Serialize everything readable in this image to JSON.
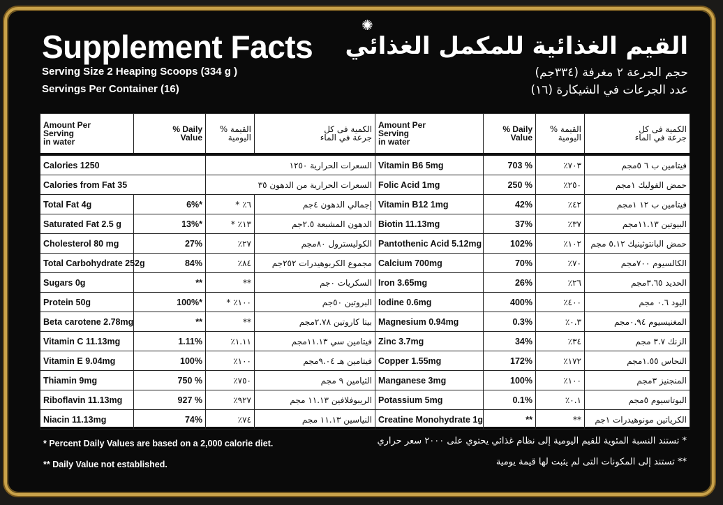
{
  "logo_glyph": "✺",
  "title_en": "Supplement Facts",
  "serving_size_en": "Serving Size 2 Heaping Scoops (334 g )",
  "servings_per_container_en": "Servings Per Container (16)",
  "title_ar": "القيم الغذائية للمكمل الغذائي",
  "serving_size_ar": "حجم الجرعة ٢ مغرفة (٣٣٤جم)",
  "servings_per_container_ar": "عدد الجرعات في الشيكارة (١٦)",
  "left_table": {
    "header": {
      "amount_en": [
        "Amount Per",
        "Serving",
        "in water"
      ],
      "daily_en": [
        "% Daily",
        "Value"
      ],
      "daily_ar": [
        "القيمة %",
        "اليومية"
      ],
      "amount_ar": [
        "الكمية فى كل",
        "جرعة في الماء"
      ]
    },
    "calories": [
      {
        "en": "Calories 1250",
        "ar": "السعرات الحرارية ١٢٥٠"
      },
      {
        "en": "Calories from Fat 35",
        "ar": "السعرات الحرارية من الدهون ٣٥"
      }
    ],
    "rows": [
      {
        "en": "Total Fat 4g",
        "pct_en": "6%*",
        "pct_ar": "٦٪ *",
        "ar": "إجمالي الدهون ٤جم"
      },
      {
        "en": "Saturated Fat 2.5 g",
        "pct_en": "13%*",
        "pct_ar": "١٣٪ *",
        "ar": "الدهون المشبعة ٢.٥جم"
      },
      {
        "en": "Cholesterol 80 mg",
        "pct_en": "27%",
        "pct_ar": "٢٧٪",
        "ar": "الكوليسترول ٨٠مجم"
      },
      {
        "en": "Total Carbohydrate 252g",
        "pct_en": "84%",
        "pct_ar": "٨٤٪",
        "ar": "مجموع الكربوهيدرات ٢٥٢جم"
      },
      {
        "en": "Sugars 0g",
        "pct_en": "**",
        "pct_ar": "**",
        "ar": "السكريات ٠جم"
      },
      {
        "en": "Protein 50g",
        "pct_en": "100%*",
        "pct_ar": "١٠٠٪ *",
        "ar": "البروتين ٥٠جم"
      },
      {
        "en": "Beta carotene 2.78mg",
        "pct_en": "**",
        "pct_ar": "**",
        "ar": "بيتا كاروتين ٢.٧٨مجم"
      },
      {
        "en": "Vitamin C 11.13mg",
        "pct_en": "1.11%",
        "pct_ar": "١.١١٪",
        "ar": "فيتامين سي ١١.١٣مجم"
      },
      {
        "en": "Vitamin E 9.04mg",
        "pct_en": "100%",
        "pct_ar": "١٠٠٪",
        "ar": "فيتامين هـ ٩.٠٤مجم"
      },
      {
        "en": "Thiamin 9mg",
        "pct_en": "750 %",
        "pct_ar": "٧٥٠٪",
        "ar": "الثيامين ٩ مجم"
      },
      {
        "en": "Riboflavin 11.13mg",
        "pct_en": "927 %",
        "pct_ar": "٩٢٧٪",
        "ar": "الريبوفلافين ١١.١٣ مجم"
      },
      {
        "en": "Niacin 11.13mg",
        "pct_en": "74%",
        "pct_ar": "٧٤٪",
        "ar": "النياسين ١١.١٣ مجم"
      }
    ]
  },
  "right_table": {
    "header": {
      "amount_en": [
        "Amount Per",
        "Serving",
        "in water"
      ],
      "daily_en": [
        "% Daily",
        "Value"
      ],
      "daily_ar": [
        "القيمة %",
        "اليومية"
      ],
      "amount_ar": [
        "الكمية فى كل",
        "جرعة في الماء"
      ]
    },
    "rows": [
      {
        "en": "Vitamin B6 5mg",
        "pct_en": "703 %",
        "pct_ar": "٧٠٣٪",
        "ar": "فيتامين ب ٦ ٥مجم"
      },
      {
        "en": "Folic Acid 1mg",
        "pct_en": "250 %",
        "pct_ar": "٢٥٠٪",
        "ar": "حمض الفوليك ١مجم"
      },
      {
        "en": "Vitamin B12 1mg",
        "pct_en": "42%",
        "pct_ar": "٤٢٪",
        "ar": "فيتامين ب ١٢ ١مجم"
      },
      {
        "en": "Biotin 11.13mg",
        "pct_en": "37%",
        "pct_ar": "٣٧٪",
        "ar": "البيوتين ١١.١٣مجم"
      },
      {
        "en": "Pantothenic Acid 5.12mg",
        "pct_en": "102%",
        "pct_ar": "١٠٢٪",
        "ar": "حمض البانتوثينيك ٥.١٢ مجم"
      },
      {
        "en": "Calcium 700mg",
        "pct_en": "70%",
        "pct_ar": "٧٠٪",
        "ar": "الكالسيوم ٧٠٠مجم"
      },
      {
        "en": "Iron 3.65mg",
        "pct_en": "26%",
        "pct_ar": "٢٦٪",
        "ar": "الحديد ٣.٦٥مجم"
      },
      {
        "en": "Iodine 0.6mg",
        "pct_en": "400%",
        "pct_ar": "٤٠٠٪",
        "ar": "اليود ٠.٦ مجم"
      },
      {
        "en": "Magnesium 0.94mg",
        "pct_en": "0.3%",
        "pct_ar": "٠.٣٪",
        "ar": "المغنيسيوم ٠.٩٤مجم"
      },
      {
        "en": "Zinc 3.7mg",
        "pct_en": "34%",
        "pct_ar": "٣٤٪",
        "ar": "الزنك ٣.٧ مجم"
      },
      {
        "en": "Copper 1.55mg",
        "pct_en": "172%",
        "pct_ar": "١٧٢٪",
        "ar": "النحاس ١.٥٥مجم"
      },
      {
        "en": "Manganese 3mg",
        "pct_en": "100%",
        "pct_ar": "١٠٠٪",
        "ar": "المنجنيز ٣مجم"
      },
      {
        "en": "Potassium 5mg",
        "pct_en": "0.1%",
        "pct_ar": "٠.١٪",
        "ar": "البوتاسيوم ٥مجم"
      },
      {
        "en": "Creatine Monohydrate 1g",
        "pct_en": "**",
        "pct_ar": "**",
        "ar": "الكرياتين مونوهيدرات ١جم"
      }
    ]
  },
  "footnotes_en": [
    "* Percent Daily Values are based on a 2,000 calorie diet.",
    "** Daily Value not established."
  ],
  "footnotes_ar": [
    "*  تستند النسبة المئوية للقيم اليومية إلى نظام غذائي يحتوي على ٢٠٠٠ سعر حراري",
    "** تستند إلى المكونات التى لم يثبت لها قيمة يومية"
  ],
  "colors": {
    "frame_gold": "#c9a24a",
    "background": "#0a0a0a",
    "table_bg": "#ffffff"
  }
}
